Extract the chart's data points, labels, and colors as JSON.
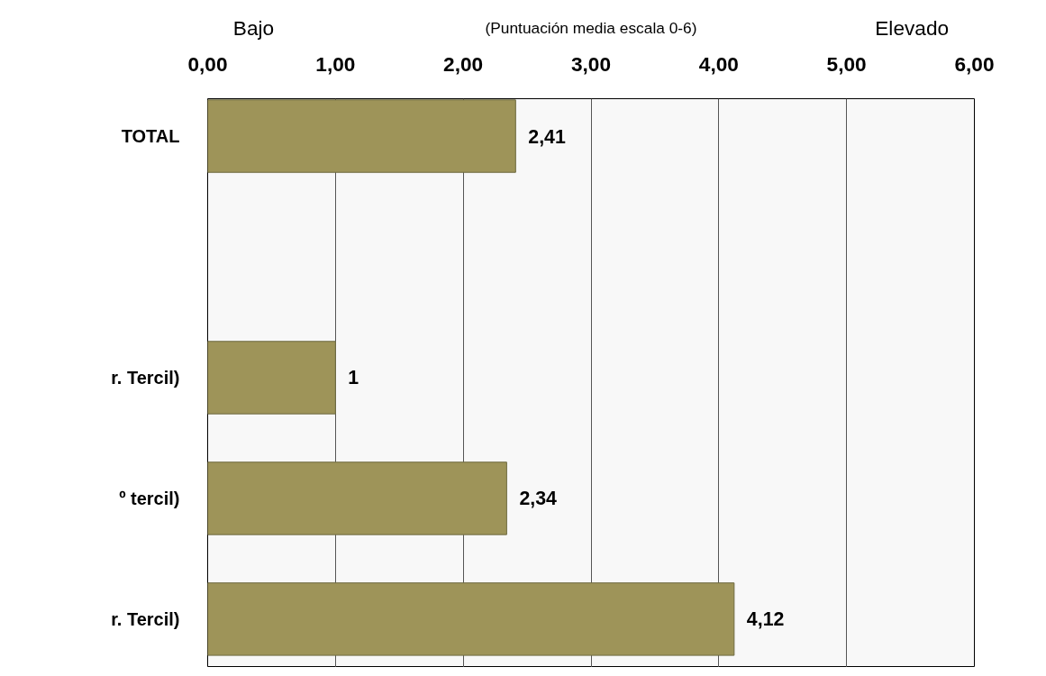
{
  "chart_data": {
    "type": "bar",
    "orientation": "horizontal",
    "categories": [
      "TOTAL",
      null,
      "r. Tercil)",
      "º tercil)",
      "r. Tercil)"
    ],
    "values": [
      2.41,
      null,
      1,
      2.34,
      4.12
    ],
    "value_labels": [
      "2,41",
      null,
      "1",
      "2,34",
      "4,12"
    ],
    "color": "#9e9459",
    "xlim": [
      0,
      6
    ],
    "xticks": [
      {
        "value": 0,
        "label": "0,00"
      },
      {
        "value": 1,
        "label": "1,00"
      },
      {
        "value": 2,
        "label": "2,00"
      },
      {
        "value": 3,
        "label": "3,00"
      },
      {
        "value": 4,
        "label": "4,00"
      },
      {
        "value": 5,
        "label": "5,00"
      },
      {
        "value": 6,
        "label": "6,00"
      }
    ],
    "grid": "x",
    "annotations": [
      "Bajo",
      "(Puntuación media escala 0-6)",
      "Elevado"
    ]
  }
}
